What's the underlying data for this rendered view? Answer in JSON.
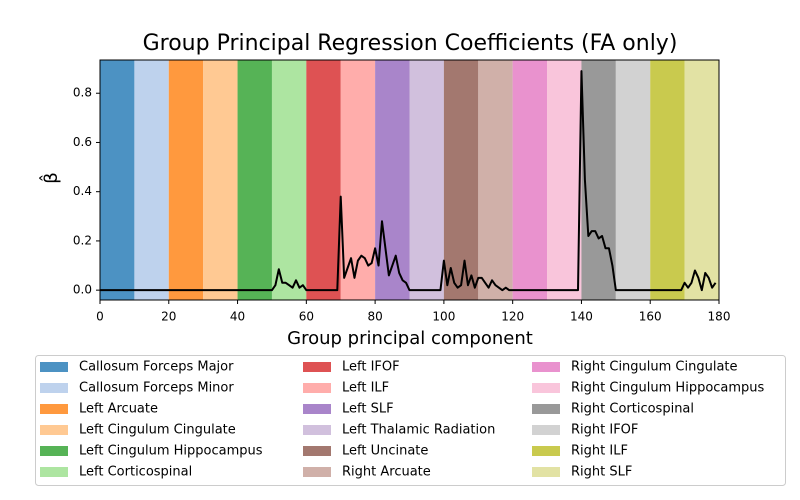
{
  "chart_data": {
    "type": "line",
    "title": "Group Principal Regression Coefficients (FA only)",
    "x_label": "Group principal component",
    "y_label": "β̂",
    "xlim": [
      0,
      180
    ],
    "ylim": [
      -0.04,
      0.935
    ],
    "xticks": [
      0,
      20,
      40,
      60,
      80,
      100,
      120,
      140,
      160,
      180
    ],
    "yticks": [
      {
        "value": 0,
        "label": "0.0"
      },
      {
        "value": 0.2,
        "label": "0.2"
      },
      {
        "value": 0.4,
        "label": "0.4"
      },
      {
        "value": 0.6,
        "label": "0.6"
      },
      {
        "value": 0.8,
        "label": "0.8"
      }
    ],
    "span_alpha": 0.8,
    "spans": [
      {
        "name": "Callosum Forceps Major",
        "color": "#1f77b4",
        "start": 0,
        "end": 10
      },
      {
        "name": "Callosum Forceps Minor",
        "color": "#aec7e8",
        "start": 10,
        "end": 20
      },
      {
        "name": "Left Arcuate",
        "color": "#ff7f0e",
        "start": 20,
        "end": 30
      },
      {
        "name": "Left Cingulum Cingulate",
        "color": "#ffbb78",
        "start": 30,
        "end": 40
      },
      {
        "name": "Left Cingulum Hippocampus",
        "color": "#2ca02c",
        "start": 40,
        "end": 50
      },
      {
        "name": "Left Corticospinal",
        "color": "#98df8a",
        "start": 50,
        "end": 60
      },
      {
        "name": "Left IFOF",
        "color": "#d62728",
        "start": 60,
        "end": 70
      },
      {
        "name": "Left ILF",
        "color": "#ff9896",
        "start": 70,
        "end": 80
      },
      {
        "name": "Left SLF",
        "color": "#9467bd",
        "start": 80,
        "end": 90
      },
      {
        "name": "Left Thalamic Radiation",
        "color": "#c5b0d5",
        "start": 90,
        "end": 100
      },
      {
        "name": "Left Uncinate",
        "color": "#8c564b",
        "start": 100,
        "end": 110
      },
      {
        "name": "Right Arcuate",
        "color": "#c49c94",
        "start": 110,
        "end": 120
      },
      {
        "name": "Right Cingulum Cingulate",
        "color": "#e377c2",
        "start": 120,
        "end": 130
      },
      {
        "name": "Right Cingulum Hippocampus",
        "color": "#f7b6d2",
        "start": 130,
        "end": 140
      },
      {
        "name": "Right Corticospinal",
        "color": "#7f7f7f",
        "start": 140,
        "end": 150
      },
      {
        "name": "Right IFOF",
        "color": "#c7c7c7",
        "start": 150,
        "end": 160
      },
      {
        "name": "Right ILF",
        "color": "#bcbd22",
        "start": 160,
        "end": 170
      },
      {
        "name": "Right SLF",
        "color": "#dbdb8d",
        "start": 170,
        "end": 180
      }
    ],
    "line_color": "#000000",
    "x": [
      0,
      1,
      2,
      3,
      4,
      5,
      6,
      7,
      8,
      9,
      10,
      11,
      12,
      13,
      14,
      15,
      16,
      17,
      18,
      19,
      20,
      21,
      22,
      23,
      24,
      25,
      26,
      27,
      28,
      29,
      30,
      31,
      32,
      33,
      34,
      35,
      36,
      37,
      38,
      39,
      40,
      41,
      42,
      43,
      44,
      45,
      46,
      47,
      48,
      49,
      50,
      51,
      52,
      53,
      54,
      55,
      56,
      57,
      58,
      59,
      60,
      61,
      62,
      63,
      64,
      65,
      66,
      67,
      68,
      69,
      70,
      71,
      72,
      73,
      74,
      75,
      76,
      77,
      78,
      79,
      80,
      81,
      82,
      83,
      84,
      85,
      86,
      87,
      88,
      89,
      90,
      91,
      92,
      93,
      94,
      95,
      96,
      97,
      98,
      99,
      100,
      101,
      102,
      103,
      104,
      105,
      106,
      107,
      108,
      109,
      110,
      111,
      112,
      113,
      114,
      115,
      116,
      117,
      118,
      119,
      120,
      121,
      122,
      123,
      124,
      125,
      126,
      127,
      128,
      129,
      130,
      131,
      132,
      133,
      134,
      135,
      136,
      137,
      138,
      139,
      140,
      141,
      142,
      143,
      144,
      145,
      146,
      147,
      148,
      149,
      150,
      151,
      152,
      153,
      154,
      155,
      156,
      157,
      158,
      159,
      160,
      161,
      162,
      163,
      164,
      165,
      166,
      167,
      168,
      169,
      170,
      171,
      172,
      173,
      174,
      175,
      176,
      177,
      178,
      179
    ],
    "values": [
      0,
      0,
      0,
      0,
      0,
      0,
      0,
      0,
      0,
      0,
      0,
      0,
      0,
      0,
      0,
      0,
      0,
      0,
      0,
      0,
      0,
      0,
      0,
      0,
      0,
      0,
      0,
      0,
      0,
      0,
      0,
      0,
      0,
      0,
      0,
      0,
      0,
      0,
      0,
      0,
      0,
      0,
      0,
      0,
      0,
      0,
      0,
      0,
      0,
      0,
      0,
      0.02,
      0.085,
      0.03,
      0.03,
      0.02,
      0.01,
      0.04,
      0.01,
      0.02,
      0,
      0,
      0,
      0,
      0,
      0,
      0,
      0,
      0,
      0,
      0.38,
      0.05,
      0.09,
      0.13,
      0.05,
      0.12,
      0.14,
      0.13,
      0.1,
      0.11,
      0.17,
      0.1,
      0.28,
      0.17,
      0.06,
      0.1,
      0.14,
      0.07,
      0.04,
      0.03,
      0,
      0,
      0,
      0,
      0,
      0,
      0,
      0,
      0,
      0,
      0.12,
      0.02,
      0.09,
      0.03,
      0.01,
      0.02,
      0.12,
      0.02,
      0.06,
      0.01,
      0.05,
      0.05,
      0.03,
      0.01,
      0.04,
      0.02,
      0.01,
      0,
      0.01,
      0,
      0,
      0,
      0,
      0,
      0,
      0,
      0,
      0,
      0,
      0,
      0,
      0,
      0,
      0,
      0,
      0,
      0,
      0,
      0,
      0,
      0.89,
      0.45,
      0.22,
      0.24,
      0.24,
      0.21,
      0.22,
      0.17,
      0.17,
      0.1,
      0,
      0,
      0,
      0,
      0,
      0,
      0,
      0,
      0,
      0,
      0,
      0,
      0,
      0,
      0,
      0,
      0,
      0,
      0,
      0,
      0.03,
      0.01,
      0.03,
      0.08,
      0.05,
      0,
      0.07,
      0.05,
      0.01,
      0.03
    ]
  }
}
